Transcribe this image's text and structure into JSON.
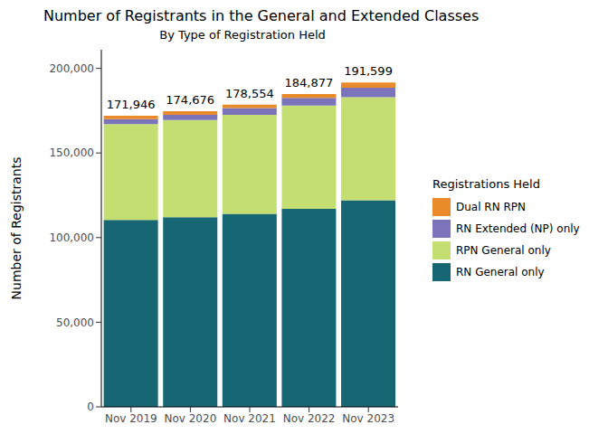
{
  "chart_data": {
    "type": "bar",
    "title": "Number of Registrants in the General and Extended Classes",
    "subtitle": "By Type of Registration Held",
    "y_label": "Number of Registrants",
    "legend_title": "Registrations Held",
    "legend": "right",
    "stacked": true,
    "grid": false,
    "categories": [
      "Nov 2019",
      "Nov 2020",
      "Nov 2021",
      "Nov 2022",
      "Nov 2023"
    ],
    "series": [
      {
        "name": "RN General only",
        "color": "#176673",
        "values": [
          110500,
          112000,
          114000,
          117000,
          122000
        ]
      },
      {
        "name": "RPN General only",
        "color": "#C5DE72",
        "values": [
          56500,
          57500,
          58500,
          61000,
          61000
        ]
      },
      {
        "name": "RN Extended (NP) only",
        "color": "#7B74BB",
        "values": [
          3000,
          3000,
          4000,
          4500,
          5500
        ]
      },
      {
        "name": "Dual RN RPN",
        "color": "#E98B2A",
        "values": [
          1946,
          2176,
          2054,
          2377,
          3099
        ]
      }
    ],
    "totals": {
      "values": [
        171946,
        174676,
        178554,
        184877,
        191599
      ],
      "value_labels": [
        "171,946",
        "174,676",
        "178,554",
        "184,877",
        "191,599"
      ]
    },
    "ylim": [
      0,
      211000
    ],
    "yticks": [
      {
        "value": 0,
        "label": "0"
      },
      {
        "value": 50000,
        "label": "50,000"
      },
      {
        "value": 100000,
        "label": "100,000"
      },
      {
        "value": 150000,
        "label": "150,000"
      },
      {
        "value": 200000,
        "label": "200,000"
      }
    ]
  }
}
